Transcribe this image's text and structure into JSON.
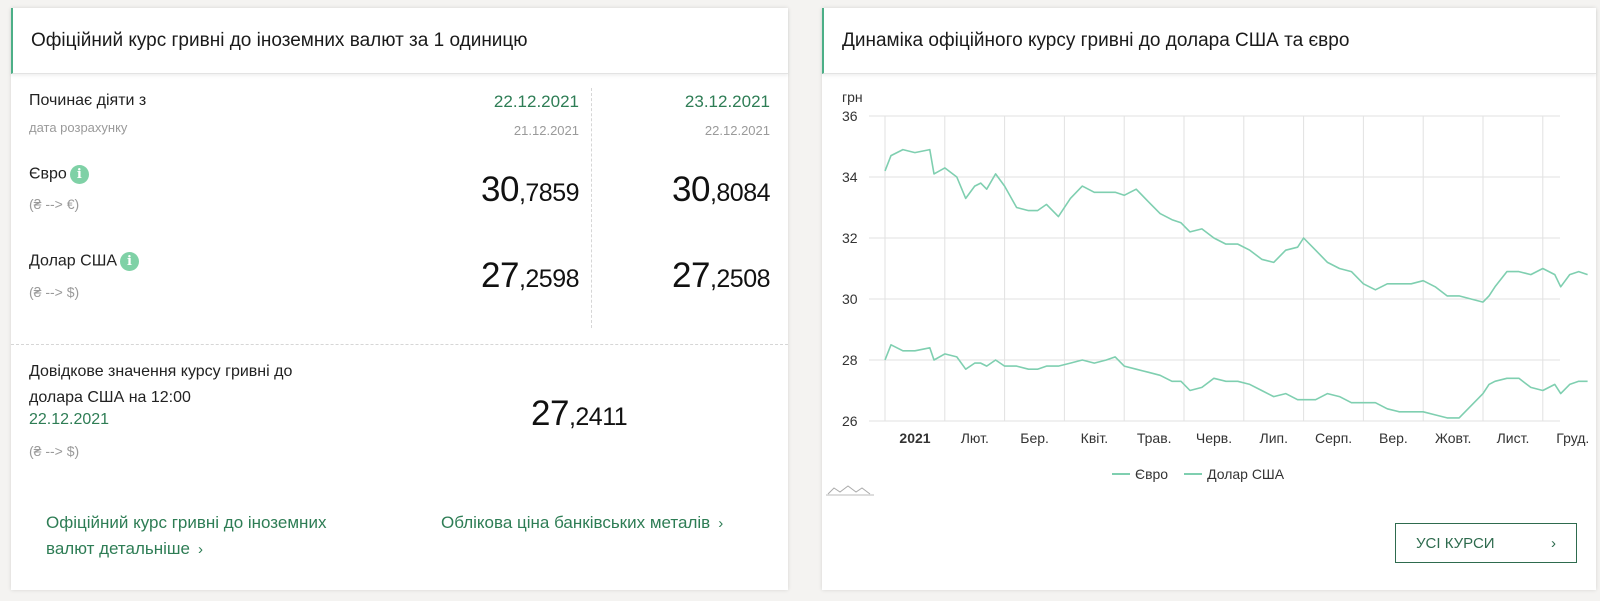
{
  "left": {
    "title": "Офіційний курс гривні до іноземних валют за 1 одиницю",
    "effective_label": "Починає діяти з",
    "calc_label": "дата розрахунку",
    "col1": {
      "date": "22.12.2021",
      "calc_date": "21.12.2021"
    },
    "col2": {
      "date": "23.12.2021",
      "calc_date": "22.12.2021"
    },
    "euro": {
      "label": "Євро",
      "info_icon": "i",
      "pair": "(₴ --> €)",
      "rate1_int": "30",
      "rate1_frac": ",7859",
      "rate2_int": "30",
      "rate2_frac": ",8084"
    },
    "usd": {
      "label": "Долар США",
      "info_icon": "i",
      "pair": "(₴ --> $)",
      "rate1_int": "27",
      "rate1_frac": ",2598",
      "rate2_int": "27",
      "rate2_frac": ",2508"
    },
    "reference": {
      "label_line1": "Довідкове значення курсу гривні до",
      "label_line2": "долара США на 12:00",
      "date": "22.12.2021",
      "pair": "(₴ --> $)",
      "rate_int": "27",
      "rate_frac": ",2411"
    },
    "link_detail_line1": "Офіційний курс гривні до іноземних",
    "link_detail_line2": "валют детальніше",
    "link_metals": "Облікова ціна банківських металів",
    "chevron": "›"
  },
  "right": {
    "title": "Динаміка офіційного курсу гривні до долара США та євро",
    "button_label": "УСІ КУРСИ",
    "button_chevron": "›"
  },
  "chart_data": {
    "type": "line",
    "ylabel": "грн",
    "ylim": [
      26,
      36
    ],
    "yticks": [
      26,
      28,
      30,
      32,
      34,
      36
    ],
    "x_labels": [
      "2021",
      "Лют.",
      "Бер.",
      "Квіт.",
      "Трав.",
      "Черв.",
      "Лип.",
      "Серп.",
      "Вер.",
      "Жовт.",
      "Лист.",
      "Груд."
    ],
    "x_range_months": [
      0,
      11.75
    ],
    "grid": true,
    "legend_position": "bottom",
    "line_color": "#7fcfb0",
    "series": [
      {
        "name": "Євро",
        "x": [
          0,
          0.1,
          0.3,
          0.5,
          0.75,
          0.82,
          1.0,
          1.2,
          1.35,
          1.5,
          1.6,
          1.7,
          1.85,
          2.0,
          2.2,
          2.4,
          2.55,
          2.7,
          2.9,
          3.1,
          3.3,
          3.5,
          3.7,
          3.85,
          4.0,
          4.2,
          4.4,
          4.6,
          4.8,
          4.95,
          5.1,
          5.3,
          5.5,
          5.7,
          5.9,
          6.1,
          6.3,
          6.5,
          6.7,
          6.9,
          7.0,
          7.2,
          7.4,
          7.6,
          7.8,
          8.0,
          8.2,
          8.4,
          8.6,
          8.8,
          9.0,
          9.2,
          9.4,
          9.6,
          9.8,
          10.0,
          10.1,
          10.2,
          10.4,
          10.6,
          10.8,
          11.0,
          11.2,
          11.3,
          11.45,
          11.6,
          11.75
        ],
        "values": [
          34.2,
          34.7,
          34.9,
          34.8,
          34.9,
          34.1,
          34.3,
          34.0,
          33.3,
          33.7,
          33.8,
          33.6,
          34.1,
          33.7,
          33.0,
          32.9,
          32.9,
          33.1,
          32.7,
          33.3,
          33.7,
          33.5,
          33.5,
          33.5,
          33.4,
          33.6,
          33.2,
          32.8,
          32.6,
          32.5,
          32.2,
          32.3,
          32.0,
          31.8,
          31.8,
          31.6,
          31.3,
          31.2,
          31.6,
          31.7,
          32.0,
          31.6,
          31.2,
          31.0,
          30.9,
          30.5,
          30.3,
          30.5,
          30.5,
          30.5,
          30.6,
          30.4,
          30.1,
          30.1,
          30.0,
          29.9,
          30.1,
          30.4,
          30.9,
          30.9,
          30.8,
          31.0,
          30.8,
          30.4,
          30.8,
          30.9,
          30.8
        ]
      },
      {
        "name": "Долар США",
        "x": [
          0,
          0.1,
          0.3,
          0.5,
          0.75,
          0.82,
          1.0,
          1.2,
          1.35,
          1.5,
          1.6,
          1.7,
          1.85,
          2.0,
          2.2,
          2.4,
          2.55,
          2.7,
          2.9,
          3.1,
          3.3,
          3.5,
          3.7,
          3.85,
          4.0,
          4.2,
          4.4,
          4.6,
          4.8,
          4.95,
          5.1,
          5.3,
          5.5,
          5.7,
          5.9,
          6.1,
          6.3,
          6.5,
          6.7,
          6.9,
          7.0,
          7.2,
          7.4,
          7.6,
          7.8,
          8.0,
          8.2,
          8.4,
          8.6,
          8.8,
          9.0,
          9.2,
          9.4,
          9.6,
          9.8,
          10.0,
          10.1,
          10.2,
          10.4,
          10.6,
          10.8,
          11.0,
          11.2,
          11.3,
          11.45,
          11.6,
          11.75
        ],
        "values": [
          28.0,
          28.5,
          28.3,
          28.3,
          28.4,
          28.0,
          28.2,
          28.1,
          27.7,
          27.9,
          27.9,
          27.8,
          28.0,
          27.8,
          27.8,
          27.7,
          27.7,
          27.8,
          27.8,
          27.9,
          28.0,
          27.9,
          28.0,
          28.1,
          27.8,
          27.7,
          27.6,
          27.5,
          27.3,
          27.3,
          27.0,
          27.1,
          27.4,
          27.3,
          27.3,
          27.2,
          27.0,
          26.8,
          26.9,
          26.7,
          26.7,
          26.7,
          26.9,
          26.8,
          26.6,
          26.6,
          26.6,
          26.4,
          26.3,
          26.3,
          26.3,
          26.2,
          26.1,
          26.1,
          26.5,
          26.9,
          27.2,
          27.3,
          27.4,
          27.4,
          27.1,
          27.0,
          27.2,
          26.9,
          27.2,
          27.3,
          27.3
        ]
      }
    ]
  }
}
